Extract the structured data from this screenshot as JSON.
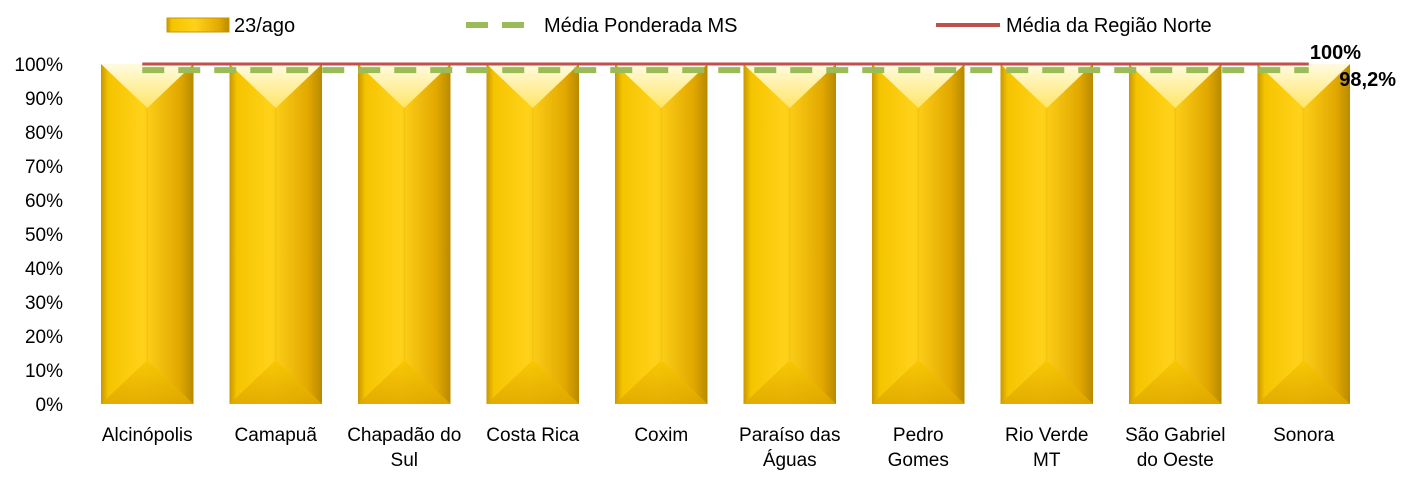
{
  "chart_data": {
    "type": "bar",
    "categories": [
      "Alcinópolis",
      "Camapuã",
      "Chapadão do Sul",
      "Costa Rica",
      "Coxim",
      "Paraíso das Águas",
      "Pedro Gomes",
      "Rio Verde MT",
      "São Gabriel do Oeste",
      "Sonora"
    ],
    "category_lines": [
      [
        "Alcinópolis"
      ],
      [
        "Camapuã"
      ],
      [
        "Chapadão do",
        "Sul"
      ],
      [
        "Costa Rica"
      ],
      [
        "Coxim"
      ],
      [
        "Paraíso das",
        "Águas"
      ],
      [
        "Pedro",
        "Gomes"
      ],
      [
        "Rio Verde",
        "MT"
      ],
      [
        "São Gabriel",
        "do Oeste"
      ],
      [
        "Sonora"
      ]
    ],
    "series": [
      {
        "name": "23/ago",
        "values": [
          100,
          100,
          100,
          100,
          100,
          100,
          100,
          100,
          100,
          100
        ]
      }
    ],
    "reference_lines": [
      {
        "name": "Média Ponderada MS",
        "value": 98.2,
        "label": "98,2%",
        "style": "dashed",
        "color": "#9BBB59"
      },
      {
        "name": "Média da Região Norte",
        "value": 100,
        "label": "100%",
        "style": "solid",
        "color": "#C0504D"
      }
    ],
    "ylim": [
      0,
      100
    ],
    "yticks": [
      "0%",
      "10%",
      "20%",
      "30%",
      "40%",
      "50%",
      "60%",
      "70%",
      "80%",
      "90%",
      "100%"
    ],
    "legend_position": "top",
    "grid": false,
    "colors": {
      "bar_light": "#FFE566",
      "bar_mid": "#F5C400",
      "bar_dark": "#C99700",
      "dashed": "#9BBB59",
      "solid": "#C0504D"
    }
  }
}
